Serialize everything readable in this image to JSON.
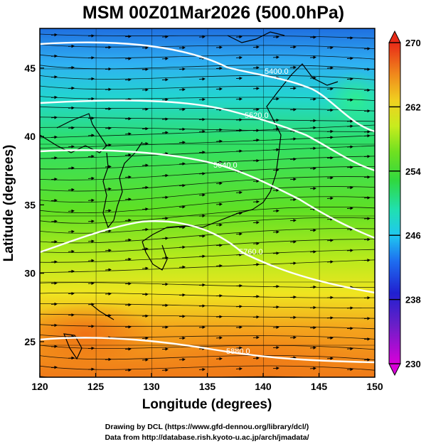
{
  "title": "MSM 00Z01Mar2026 (500.0hPa)",
  "xaxis": {
    "label": "Longitude (degrees)",
    "range": [
      120,
      150
    ],
    "ticks": [
      {
        "value": 120,
        "label": "120"
      },
      {
        "value": 125,
        "label": "125"
      },
      {
        "value": 130,
        "label": "130"
      },
      {
        "value": 135,
        "label": "135"
      },
      {
        "value": 140,
        "label": "140"
      },
      {
        "value": 145,
        "label": "145"
      },
      {
        "value": 150,
        "label": "150"
      }
    ]
  },
  "yaxis": {
    "label": "Latitude (degrees)",
    "range": [
      22.4,
      47.9
    ],
    "ticks": [
      {
        "value": 25,
        "label": "25"
      },
      {
        "value": 30,
        "label": "30"
      },
      {
        "value": 35,
        "label": "35"
      },
      {
        "value": 40,
        "label": "40"
      },
      {
        "value": 45,
        "label": "45"
      }
    ]
  },
  "colorbar": {
    "range": [
      230,
      270
    ],
    "ticks": [
      {
        "value": 230,
        "label": "230"
      },
      {
        "value": 238,
        "label": "238"
      },
      {
        "value": 246,
        "label": "246"
      },
      {
        "value": 254,
        "label": "254"
      },
      {
        "value": 262,
        "label": "262"
      },
      {
        "value": 270,
        "label": "270"
      }
    ]
  },
  "contours": [
    {
      "label": "5400.0"
    },
    {
      "label": "5520.0"
    },
    {
      "label": "5640.0"
    },
    {
      "label": "5760.0"
    },
    {
      "label": "5880.0"
    }
  ],
  "credits": {
    "line1": "Drawing by DCL (https://www.gfd-dennou.org/library/dcl/)",
    "line2": "Data from http://database.rish.kyoto-u.ac.jp/arch/jmadata/"
  },
  "chart_data": {
    "type": "heatmap",
    "title": "MSM 00Z01Mar2026 (500.0hPa)",
    "xlabel": "Longitude (degrees)",
    "ylabel": "Latitude (degrees)",
    "xlim": [
      120,
      150
    ],
    "ylim": [
      22.4,
      47.9
    ],
    "colorbar_range": [
      230,
      270
    ],
    "colormap": "rainbow (magenta-blue-cyan-green-yellow-orange-red)",
    "overlays": [
      "streamlines with arrows",
      "white geopotential height contours",
      "coastlines",
      "grid"
    ],
    "grid": true,
    "contour_levels": [
      5400,
      5520,
      5640,
      5760,
      5880
    ]
  }
}
